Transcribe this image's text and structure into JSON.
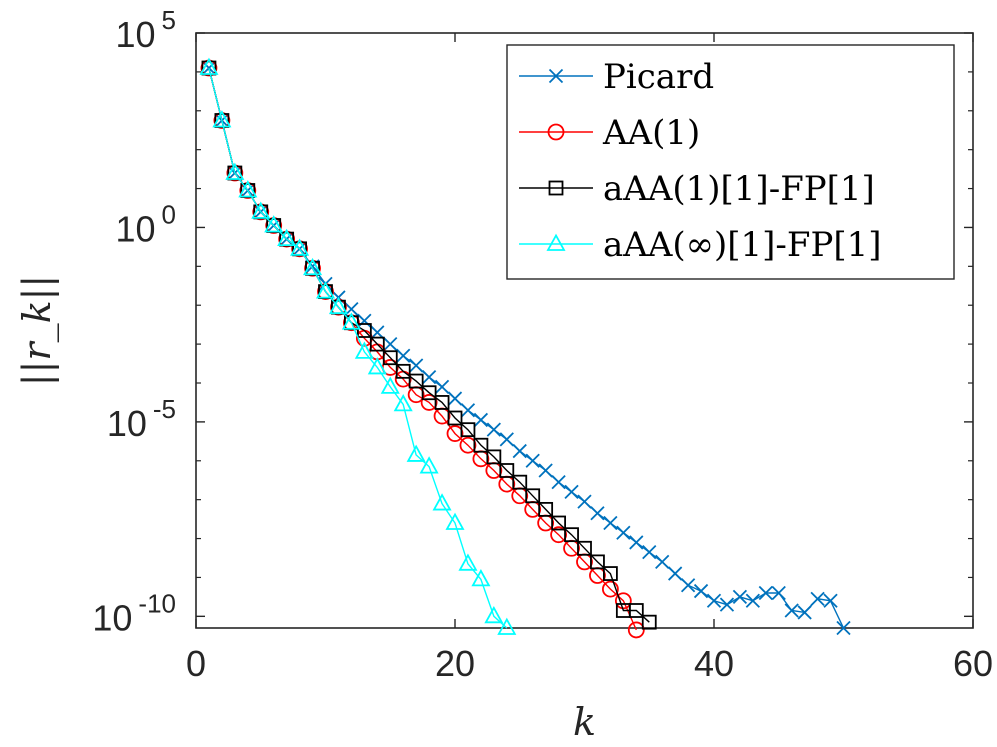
{
  "chart_data": {
    "type": "line",
    "xlabel": "k",
    "ylabel": "||r_k||",
    "xlim": [
      0,
      60
    ],
    "ylim_log10": [
      -10.3,
      5
    ],
    "yscale": "log",
    "x_ticks": [
      "0",
      "20",
      "40",
      "60"
    ],
    "y_ticks": [
      {
        "base": "10",
        "exp": "5",
        "value": 5
      },
      {
        "base": "10",
        "exp": "0",
        "value": 0
      },
      {
        "base": "10",
        "exp": "-5",
        "value": -5
      },
      {
        "base": "10",
        "exp": "-10",
        "value": -10
      }
    ],
    "legend_position": "top-right",
    "series": [
      {
        "name": "Picard",
        "color": "#0072BD",
        "marker": "x",
        "x": [
          1,
          2,
          3,
          4,
          5,
          6,
          7,
          8,
          9,
          10,
          11,
          12,
          13,
          14,
          15,
          16,
          17,
          18,
          19,
          20,
          21,
          22,
          23,
          24,
          25,
          26,
          27,
          28,
          29,
          30,
          31,
          32,
          33,
          34,
          35,
          36,
          37,
          38,
          39,
          40,
          41,
          42,
          43,
          44,
          45,
          46,
          47,
          48,
          49,
          50
        ],
        "log10_y": [
          4.1,
          2.75,
          1.4,
          0.95,
          0.4,
          0.05,
          -0.3,
          -0.55,
          -1.0,
          -1.45,
          -1.8,
          -2.1,
          -2.4,
          -2.7,
          -3.0,
          -3.3,
          -3.55,
          -3.85,
          -4.1,
          -4.4,
          -4.7,
          -4.95,
          -5.2,
          -5.45,
          -5.75,
          -6.0,
          -6.25,
          -6.55,
          -6.8,
          -7.05,
          -7.35,
          -7.6,
          -7.85,
          -8.1,
          -8.35,
          -8.6,
          -8.9,
          -9.2,
          -9.35,
          -9.6,
          -9.7,
          -9.5,
          -9.6,
          -9.4,
          -9.4,
          -9.85,
          -9.9,
          -9.55,
          -9.6,
          -10.3
        ]
      },
      {
        "name": "AA(1)",
        "color": "#FF0000",
        "marker": "o",
        "x": [
          1,
          2,
          3,
          4,
          5,
          6,
          7,
          8,
          9,
          10,
          11,
          12,
          13,
          14,
          15,
          16,
          17,
          18,
          19,
          20,
          21,
          22,
          23,
          24,
          25,
          26,
          27,
          28,
          29,
          30,
          31,
          32,
          33,
          34
        ],
        "log10_y": [
          4.1,
          2.75,
          1.4,
          0.95,
          0.4,
          0.05,
          -0.3,
          -0.55,
          -1.05,
          -1.65,
          -2.05,
          -2.45,
          -2.85,
          -3.2,
          -3.6,
          -3.9,
          -4.3,
          -4.5,
          -4.85,
          -5.3,
          -5.6,
          -5.95,
          -6.25,
          -6.6,
          -6.9,
          -7.25,
          -7.6,
          -7.9,
          -8.25,
          -8.6,
          -8.95,
          -9.3,
          -9.6,
          -10.35
        ]
      },
      {
        "name": "aAA(1)[1]-FP[1]",
        "color": "#000000",
        "marker": "s",
        "x": [
          1,
          2,
          3,
          4,
          5,
          6,
          7,
          8,
          9,
          10,
          11,
          12,
          13,
          14,
          15,
          16,
          17,
          18,
          19,
          20,
          21,
          22,
          23,
          24,
          25,
          26,
          27,
          28,
          29,
          30,
          31,
          32,
          33,
          34,
          35
        ],
        "log10_y": [
          4.1,
          2.75,
          1.4,
          0.95,
          0.4,
          0.05,
          -0.3,
          -0.55,
          -1.05,
          -1.65,
          -2.05,
          -2.45,
          -2.65,
          -3.0,
          -3.35,
          -3.7,
          -3.95,
          -4.25,
          -4.5,
          -4.9,
          -5.2,
          -5.6,
          -5.9,
          -6.25,
          -6.55,
          -6.9,
          -7.25,
          -7.6,
          -7.9,
          -8.25,
          -8.6,
          -8.9,
          -9.85,
          -9.85,
          -10.15
        ]
      },
      {
        "name": "aAA(∞)[1]-FP[1]",
        "color": "#00FFFF",
        "marker": "^",
        "x": [
          1,
          2,
          3,
          4,
          5,
          6,
          7,
          8,
          9,
          10,
          11,
          12,
          13,
          14,
          15,
          16,
          17,
          18,
          19,
          20,
          21,
          22,
          23,
          24
        ],
        "log10_y": [
          4.1,
          2.75,
          1.4,
          0.95,
          0.4,
          0.05,
          -0.3,
          -0.55,
          -1.05,
          -1.65,
          -2.05,
          -2.45,
          -3.2,
          -3.6,
          -4.1,
          -4.55,
          -5.85,
          -6.15,
          -7.1,
          -7.6,
          -8.65,
          -9.05,
          -10.0,
          -10.3
        ]
      }
    ]
  }
}
